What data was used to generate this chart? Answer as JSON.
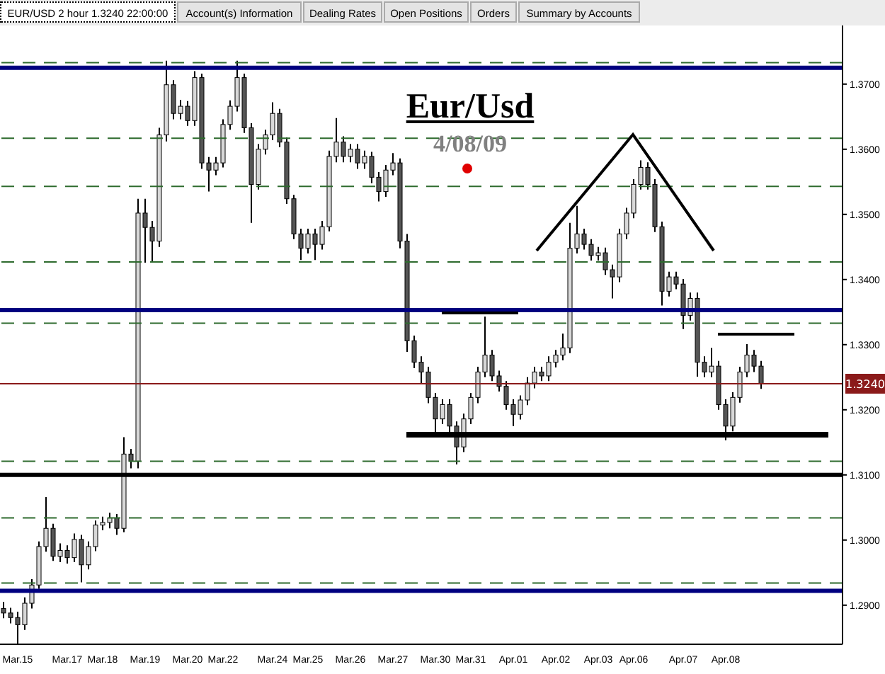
{
  "chart_data": {
    "type": "candlestick",
    "title": "Eur/Usd",
    "subtitle": "4/08/09",
    "annotations": [
      "EUR/USD 2 hour 1.3240 22:00:00",
      "Account(s) Information",
      "Dealing Rates",
      "Open Positions",
      "Orders",
      "Summary by Accounts"
    ],
    "categories": [
      null,
      null,
      "Mar.15",
      null,
      null,
      null,
      null,
      null,
      null,
      "Mar.17",
      null,
      null,
      null,
      null,
      "Mar.18",
      null,
      null,
      null,
      null,
      null,
      "Mar.19",
      null,
      null,
      null,
      null,
      null,
      "Mar.20",
      null,
      null,
      null,
      null,
      "Mar.22",
      null,
      null,
      null,
      null,
      null,
      null,
      "Mar.24",
      null,
      null,
      null,
      null,
      "Mar.25",
      null,
      null,
      null,
      null,
      null,
      "Mar.26",
      null,
      null,
      null,
      null,
      null,
      "Mar.27",
      null,
      null,
      null,
      null,
      null,
      "Mar.30",
      null,
      null,
      null,
      null,
      "Mar.31",
      null,
      null,
      null,
      null,
      null,
      "Apr.01",
      null,
      null,
      null,
      null,
      null,
      "Apr.02",
      null,
      null,
      null,
      null,
      null,
      "Apr.03",
      null,
      null,
      null,
      null,
      "Apr.06",
      null,
      null,
      null,
      null,
      null,
      null,
      "Apr.07",
      null,
      null,
      null,
      null,
      null,
      "Apr.08",
      null,
      null,
      null,
      null,
      null,
      null,
      null,
      null,
      null,
      null,
      null,
      null,
      null,
      null,
      null,
      null
    ],
    "ohlc": [
      [
        1.2895,
        1.2905,
        1.288,
        1.2888
      ],
      [
        1.2888,
        1.2896,
        1.2872,
        1.2881
      ],
      [
        1.2881,
        1.289,
        1.2837,
        1.287
      ],
      [
        1.287,
        1.2912,
        1.2862,
        1.2903
      ],
      [
        1.2903,
        1.294,
        1.2895,
        1.2931
      ],
      [
        1.2931,
        1.2998,
        1.2925,
        1.299
      ],
      [
        1.299,
        1.3066,
        1.2982,
        1.3018
      ],
      [
        1.3018,
        1.3025,
        1.2968,
        1.2975
      ],
      [
        1.2975,
        1.2995,
        1.2966,
        1.2984
      ],
      [
        1.2984,
        1.2992,
        1.2964,
        1.2973
      ],
      [
        1.2973,
        1.301,
        1.2966,
        1.3001
      ],
      [
        1.3001,
        1.3008,
        1.2935,
        1.2962
      ],
      [
        1.2962,
        1.2998,
        1.2955,
        1.299
      ],
      [
        1.299,
        1.303,
        1.2983,
        1.3023
      ],
      [
        1.3023,
        1.3036,
        1.3015,
        1.3027
      ],
      [
        1.3027,
        1.3042,
        1.3018,
        1.3034
      ],
      [
        1.3034,
        1.304,
        1.3008,
        1.3018
      ],
      [
        1.3018,
        1.3158,
        1.3012,
        1.3132
      ],
      [
        1.3132,
        1.314,
        1.311,
        1.3121
      ],
      [
        1.3121,
        1.3524,
        1.311,
        1.3502
      ],
      [
        1.3502,
        1.3524,
        1.3426,
        1.348
      ],
      [
        1.348,
        1.349,
        1.3426,
        1.3459
      ],
      [
        1.3459,
        1.3633,
        1.345,
        1.3622
      ],
      [
        1.3622,
        1.3736,
        1.3612,
        1.3699
      ],
      [
        1.3699,
        1.3706,
        1.3646,
        1.3655
      ],
      [
        1.3655,
        1.3676,
        1.3646,
        1.3666
      ],
      [
        1.3666,
        1.3674,
        1.3636,
        1.3644
      ],
      [
        1.3644,
        1.372,
        1.3636,
        1.371
      ],
      [
        1.371,
        1.3716,
        1.357,
        1.3579
      ],
      [
        1.3579,
        1.3588,
        1.3535,
        1.3568
      ],
      [
        1.3568,
        1.3588,
        1.356,
        1.3579
      ],
      [
        1.3579,
        1.3646,
        1.3572,
        1.3638
      ],
      [
        1.3638,
        1.3675,
        1.363,
        1.3666
      ],
      [
        1.3666,
        1.3736,
        1.3658,
        1.371
      ],
      [
        1.371,
        1.3716,
        1.3625,
        1.3633
      ],
      [
        1.3633,
        1.364,
        1.3487,
        1.3546
      ],
      [
        1.3546,
        1.3608,
        1.3538,
        1.36
      ],
      [
        1.36,
        1.363,
        1.3592,
        1.3622
      ],
      [
        1.3622,
        1.3672,
        1.3614,
        1.3655
      ],
      [
        1.3655,
        1.3662,
        1.3603,
        1.3611
      ],
      [
        1.3611,
        1.3618,
        1.3516,
        1.3524
      ],
      [
        1.3524,
        1.353,
        1.3462,
        1.347
      ],
      [
        1.347,
        1.3478,
        1.343,
        1.3448
      ],
      [
        1.3448,
        1.3478,
        1.344,
        1.347
      ],
      [
        1.347,
        1.3478,
        1.343,
        1.3454
      ],
      [
        1.3454,
        1.349,
        1.3446,
        1.3481
      ],
      [
        1.3481,
        1.3598,
        1.3474,
        1.3589
      ],
      [
        1.3589,
        1.3648,
        1.358,
        1.3611
      ],
      [
        1.3611,
        1.362,
        1.358,
        1.3589
      ],
      [
        1.3589,
        1.3608,
        1.358,
        1.36
      ],
      [
        1.36,
        1.3608,
        1.357,
        1.3579
      ],
      [
        1.3579,
        1.3598,
        1.357,
        1.3589
      ],
      [
        1.3589,
        1.3596,
        1.3548,
        1.3557
      ],
      [
        1.3557,
        1.3565,
        1.352,
        1.3535
      ],
      [
        1.3535,
        1.3576,
        1.3527,
        1.3568
      ],
      [
        1.3568,
        1.3594,
        1.356,
        1.3579
      ],
      [
        1.3579,
        1.3586,
        1.3448,
        1.3459
      ],
      [
        1.3459,
        1.347,
        1.3289,
        1.3306
      ],
      [
        1.3306,
        1.3314,
        1.3264,
        1.3273
      ],
      [
        1.3273,
        1.3282,
        1.3241,
        1.3258
      ],
      [
        1.3258,
        1.3266,
        1.321,
        1.3219
      ],
      [
        1.3219,
        1.3226,
        1.3164,
        1.3186
      ],
      [
        1.3186,
        1.3216,
        1.3178,
        1.3208
      ],
      [
        1.3208,
        1.3216,
        1.3166,
        1.3175
      ],
      [
        1.3175,
        1.3182,
        1.3116,
        1.3143
      ],
      [
        1.3143,
        1.3194,
        1.3135,
        1.3186
      ],
      [
        1.3186,
        1.3226,
        1.3178,
        1.3219
      ],
      [
        1.3219,
        1.3266,
        1.321,
        1.3258
      ],
      [
        1.3258,
        1.3343,
        1.325,
        1.3284
      ],
      [
        1.3284,
        1.3292,
        1.3244,
        1.3252
      ],
      [
        1.3252,
        1.326,
        1.3228,
        1.3236
      ],
      [
        1.3236,
        1.3244,
        1.32,
        1.3208
      ],
      [
        1.3208,
        1.3216,
        1.3175,
        1.3193
      ],
      [
        1.3193,
        1.3222,
        1.3185,
        1.3215
      ],
      [
        1.3215,
        1.325,
        1.3207,
        1.3241
      ],
      [
        1.3241,
        1.3266,
        1.3233,
        1.3258
      ],
      [
        1.3258,
        1.3266,
        1.3244,
        1.3252
      ],
      [
        1.3252,
        1.3282,
        1.3244,
        1.3273
      ],
      [
        1.3273,
        1.3292,
        1.3265,
        1.3284
      ],
      [
        1.3284,
        1.3317,
        1.3276,
        1.3295
      ],
      [
        1.3295,
        1.3487,
        1.3287,
        1.3448
      ],
      [
        1.3448,
        1.3513,
        1.344,
        1.347
      ],
      [
        1.347,
        1.3478,
        1.3446,
        1.3454
      ],
      [
        1.3454,
        1.3462,
        1.3429,
        1.3437
      ],
      [
        1.3437,
        1.345,
        1.3429,
        1.3441
      ],
      [
        1.3441,
        1.3449,
        1.3407,
        1.3415
      ],
      [
        1.3415,
        1.3423,
        1.3371,
        1.3404
      ],
      [
        1.3404,
        1.3478,
        1.3396,
        1.347
      ],
      [
        1.347,
        1.351,
        1.3462,
        1.3502
      ],
      [
        1.3502,
        1.3554,
        1.3494,
        1.3546
      ],
      [
        1.3546,
        1.3583,
        1.3538,
        1.3572
      ],
      [
        1.3572,
        1.358,
        1.3538,
        1.3546
      ],
      [
        1.3546,
        1.3554,
        1.3473,
        1.3481
      ],
      [
        1.3481,
        1.3489,
        1.336,
        1.3382
      ],
      [
        1.3382,
        1.3412,
        1.3374,
        1.3404
      ],
      [
        1.3404,
        1.3412,
        1.3385,
        1.3393
      ],
      [
        1.3393,
        1.3401,
        1.3324,
        1.3345
      ],
      [
        1.3345,
        1.338,
        1.3337,
        1.3371
      ],
      [
        1.3371,
        1.338,
        1.3251,
        1.3273
      ],
      [
        1.3273,
        1.3282,
        1.325,
        1.3258
      ],
      [
        1.3258,
        1.3295,
        1.325,
        1.3267
      ],
      [
        1.3267,
        1.3275,
        1.32,
        1.3208
      ],
      [
        1.3208,
        1.3216,
        1.3153,
        1.3175
      ],
      [
        1.3175,
        1.3227,
        1.3167,
        1.3219
      ],
      [
        1.3219,
        1.3266,
        1.3211,
        1.3258
      ],
      [
        1.3258,
        1.3301,
        1.325,
        1.3284
      ],
      [
        1.3284,
        1.3292,
        1.3258,
        1.3267
      ],
      [
        1.3267,
        1.3275,
        1.3232,
        1.324
      ],
      null,
      null,
      null,
      null,
      null,
      null,
      null,
      null,
      null,
      null,
      null
    ],
    "ylim": [
      1.284,
      1.379
    ],
    "yticks": [
      {
        "value": 1.29,
        "label": "1.2900"
      },
      {
        "value": 1.3,
        "label": "1.3000"
      },
      {
        "value": 1.31,
        "label": "1.3100"
      },
      {
        "value": 1.32,
        "label": "1.3200"
      },
      {
        "value": 1.33,
        "label": "1.3300"
      },
      {
        "value": 1.34,
        "label": "1.3400"
      },
      {
        "value": 1.35,
        "label": "1.3500"
      },
      {
        "value": 1.36,
        "label": "1.3600"
      },
      {
        "value": 1.37,
        "label": "1.3700"
      }
    ],
    "ref_lines": [
      {
        "axis": "y",
        "value": 1.3733,
        "color": "#2e6b2e",
        "line_style": "dashed"
      },
      {
        "axis": "y",
        "value": 1.3617,
        "color": "#2e6b2e",
        "line_style": "dashed"
      },
      {
        "axis": "y",
        "value": 1.3543,
        "color": "#2e6b2e",
        "line_style": "dashed"
      },
      {
        "axis": "y",
        "value": 1.3427,
        "color": "#2e6b2e",
        "line_style": "dashed"
      },
      {
        "axis": "y",
        "value": 1.3333,
        "color": "#2e6b2e",
        "line_style": "dashed"
      },
      {
        "axis": "y",
        "value": 1.3121,
        "color": "#2e6b2e",
        "line_style": "dashed"
      },
      {
        "axis": "y",
        "value": 1.3034,
        "color": "#2e6b2e",
        "line_style": "dashed"
      },
      {
        "axis": "y",
        "value": 1.2934,
        "color": "#2e6b2e",
        "line_style": "dashed"
      },
      {
        "axis": "y",
        "value": 1.3725,
        "color": "#000080",
        "line_style": "solid"
      },
      {
        "axis": "y",
        "value": 1.3353,
        "color": "#000080",
        "line_style": "solid"
      },
      {
        "axis": "y",
        "value": 1.2922,
        "color": "#000080",
        "line_style": "solid"
      },
      {
        "axis": "y",
        "value": 1.31,
        "color": "#000000",
        "line_style": "solid"
      },
      {
        "axis": "y",
        "value": 1.324,
        "label": "1.3240",
        "color": "#8b1a1a",
        "line_style": "solid"
      }
    ],
    "line_style": "solid"
  }
}
